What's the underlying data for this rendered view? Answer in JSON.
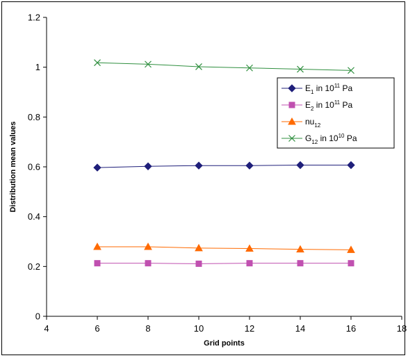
{
  "chart_data": {
    "type": "line",
    "xlabel": "Grid points",
    "ylabel": "Distribution mean values",
    "xlim": [
      4,
      18
    ],
    "ylim": [
      0,
      1.2
    ],
    "x_ticks": [
      "4",
      "6",
      "8",
      "10",
      "12",
      "14",
      "16",
      "18"
    ],
    "y_ticks": [
      "0",
      "0.2",
      "0.4",
      "0.6",
      "0.8",
      "1",
      "1.2"
    ],
    "grid": false,
    "legend_position": "right",
    "x": [
      6,
      8,
      10,
      12,
      14,
      16
    ],
    "series": [
      {
        "name": "E1 in 10^11 Pa",
        "label_parts": {
          "base": "E",
          "sub": "1",
          "mid": " in 10",
          "sup": "11",
          "tail": " Pa"
        },
        "values": [
          0.597,
          0.602,
          0.605,
          0.605,
          0.607,
          0.607
        ],
        "color": "#1f1f7a",
        "marker": "diamond"
      },
      {
        "name": "E2 in 10^11 Pa",
        "label_parts": {
          "base": "E",
          "sub": "2",
          "mid": " in 10",
          "sup": "11",
          "tail": " Pa"
        },
        "values": [
          0.213,
          0.213,
          0.211,
          0.213,
          0.213,
          0.213
        ],
        "color": "#c050b0",
        "marker": "square"
      },
      {
        "name": "nu12",
        "label_parts": {
          "base": "nu",
          "sub": "12",
          "mid": "",
          "sup": "",
          "tail": ""
        },
        "values": [
          0.279,
          0.279,
          0.274,
          0.272,
          0.269,
          0.267
        ],
        "color": "#ff6a00",
        "marker": "triangle"
      },
      {
        "name": "G12 in 10^10 Pa",
        "label_parts": {
          "base": "G",
          "sub": "12",
          "mid": " in 10",
          "sup": "10",
          "tail": " Pa"
        },
        "values": [
          1.018,
          1.012,
          1.002,
          0.997,
          0.992,
          0.987
        ],
        "color": "#2f8f3f",
        "marker": "x"
      }
    ]
  }
}
